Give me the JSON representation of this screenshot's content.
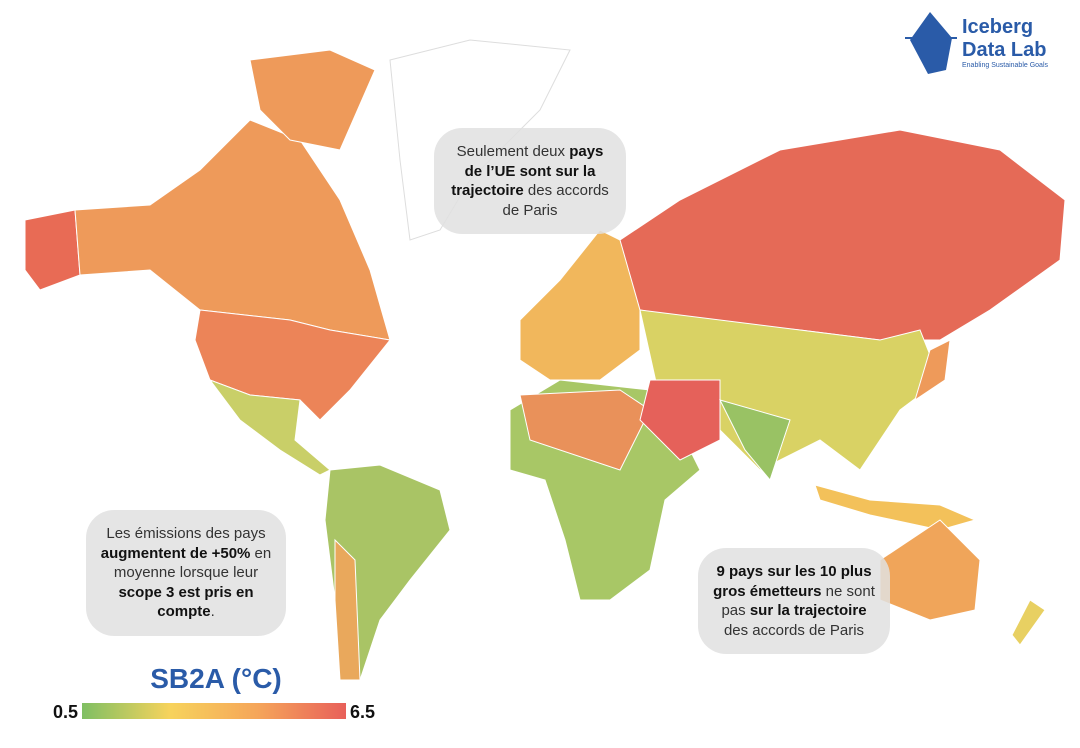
{
  "logo": {
    "line1": "Iceberg",
    "line2": "Data Lab",
    "tagline": "Enabling Sustainable Goals"
  },
  "callouts": [
    {
      "runs": [
        {
          "text": "Seulement deux ",
          "bold": false
        },
        {
          "text": "pays de l’UE sont sur la trajectoire",
          "bold": true
        },
        {
          "text": " des accords de Paris",
          "bold": false
        }
      ]
    },
    {
      "runs": [
        {
          "text": "Les émissions des pays ",
          "bold": false
        },
        {
          "text": "augmentent de +50%",
          "bold": true
        },
        {
          "text": " en moyenne lorsque leur ",
          "bold": false
        },
        {
          "text": "scope 3 est pris en compte",
          "bold": true
        },
        {
          "text": ".",
          "bold": false
        }
      ]
    },
    {
      "runs": [
        {
          "text": "9 pays sur les 10 plus gros émetteurs",
          "bold": true
        },
        {
          "text": " ne sont pas ",
          "bold": false
        },
        {
          "text": "sur la trajectoire",
          "bold": true
        },
        {
          "text": " des accords de Paris",
          "bold": false
        }
      ]
    }
  ],
  "legend": {
    "title": "SB2A (°C)",
    "min": 0.5,
    "max": 6.5,
    "colors": [
      "#7fbf63",
      "#f7d35c",
      "#f5a55a",
      "#e8605a"
    ]
  }
}
